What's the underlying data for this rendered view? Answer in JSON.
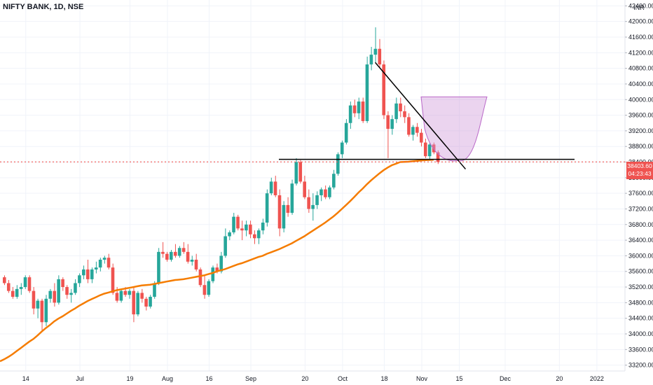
{
  "header": {
    "symbol": "NIFTY BANK, 1D, NSE"
  },
  "axis": {
    "currency": "INR"
  },
  "last_price": {
    "value": "38403.60",
    "countdown": "04:23:43",
    "color": "#ef5350"
  },
  "colors": {
    "up": "#26a69a",
    "down": "#ef5350",
    "ma": "#f57c00",
    "pattern_fill": "#ce93d8",
    "pattern_stroke": "#ba68c8",
    "lines": "#000000",
    "grid": "#f0f3fa"
  },
  "chart_data": {
    "type": "candlestick",
    "title": "NIFTY BANK, 1D, NSE",
    "ylim": [
      33050,
      42550
    ],
    "y_ticks": [
      33200,
      33600,
      34000,
      34400,
      34800,
      35200,
      35600,
      36000,
      36400,
      36800,
      37200,
      37600,
      38000,
      38400,
      38800,
      39200,
      39600,
      40000,
      40400,
      40800,
      41200,
      41600,
      42000,
      42400
    ],
    "x_ticks": [
      "14",
      "Jul",
      "19",
      "Aug",
      "16",
      "Sep",
      "20",
      "Oct",
      "18",
      "Nov",
      "15",
      "Dec",
      "20",
      "2022"
    ],
    "candles": [
      [
        35450,
        35500,
        35250,
        35300
      ],
      [
        35300,
        35380,
        35050,
        35100
      ],
      [
        35100,
        35200,
        34900,
        34950
      ],
      [
        34950,
        35250,
        34900,
        35150
      ],
      [
        35150,
        35300,
        35000,
        35200
      ],
      [
        35200,
        35500,
        35150,
        35450
      ],
      [
        35450,
        35500,
        35050,
        35100
      ],
      [
        35100,
        35200,
        34500,
        34650
      ],
      [
        34650,
        34900,
        34400,
        34850
      ],
      [
        34850,
        34900,
        34050,
        34300
      ],
      [
        34300,
        35000,
        34200,
        34900
      ],
      [
        34900,
        35150,
        34800,
        35100
      ],
      [
        35100,
        35300,
        34700,
        34800
      ],
      [
        34800,
        35500,
        34750,
        35400
      ],
      [
        35400,
        35450,
        35100,
        35200
      ],
      [
        35200,
        35250,
        34900,
        35000
      ],
      [
        35000,
        35150,
        34800,
        35050
      ],
      [
        35050,
        35400,
        35000,
        35300
      ],
      [
        35300,
        35550,
        35200,
        35500
      ],
      [
        35500,
        35750,
        35400,
        35650
      ],
      [
        35650,
        35900,
        35300,
        35400
      ],
      [
        35400,
        35700,
        35300,
        35650
      ],
      [
        35650,
        35850,
        35550,
        35700
      ],
      [
        35700,
        35950,
        35600,
        35900
      ],
      [
        35900,
        36000,
        35800,
        35950
      ],
      [
        35950,
        36050,
        35650,
        35700
      ],
      [
        35700,
        35800,
        35000,
        35050
      ],
      [
        35050,
        35200,
        34800,
        34850
      ],
      [
        34850,
        35150,
        34800,
        35100
      ],
      [
        35100,
        35200,
        34950,
        35000
      ],
      [
        35000,
        35150,
        34900,
        35100
      ],
      [
        35100,
        35200,
        34300,
        34500
      ],
      [
        34500,
        35100,
        34450,
        35050
      ],
      [
        35050,
        35150,
        34800,
        34900
      ],
      [
        34900,
        34950,
        34600,
        34700
      ],
      [
        34700,
        35000,
        34650,
        34950
      ],
      [
        34950,
        35350,
        34900,
        35300
      ],
      [
        35300,
        36200,
        35250,
        36100
      ],
      [
        36100,
        36350,
        35950,
        36050
      ],
      [
        36050,
        36100,
        35850,
        35900
      ],
      [
        35900,
        36150,
        35850,
        36100
      ],
      [
        36100,
        36300,
        35950,
        36000
      ],
      [
        36000,
        36250,
        35950,
        36200
      ],
      [
        36200,
        36350,
        36050,
        36100
      ],
      [
        36100,
        36300,
        35800,
        35850
      ],
      [
        35850,
        36000,
        35750,
        35900
      ],
      [
        35900,
        36050,
        35600,
        35650
      ],
      [
        35650,
        35700,
        35200,
        35250
      ],
      [
        35250,
        35500,
        34900,
        35000
      ],
      [
        35000,
        35400,
        34950,
        35350
      ],
      [
        35350,
        35750,
        35300,
        35700
      ],
      [
        35700,
        35800,
        35550,
        35600
      ],
      [
        35600,
        36100,
        35550,
        36000
      ],
      [
        36000,
        36700,
        35950,
        36500
      ],
      [
        36500,
        36650,
        36400,
        36600
      ],
      [
        36600,
        37100,
        36550,
        37000
      ],
      [
        37000,
        37050,
        36650,
        36700
      ],
      [
        36700,
        36900,
        36400,
        36650
      ],
      [
        36650,
        36900,
        36500,
        36800
      ],
      [
        36800,
        36900,
        36450,
        36550
      ],
      [
        36550,
        36650,
        36300,
        36450
      ],
      [
        36450,
        36700,
        36300,
        36650
      ],
      [
        36650,
        36950,
        36550,
        36850
      ],
      [
        36850,
        37700,
        36750,
        37600
      ],
      [
        37600,
        38000,
        37550,
        37900
      ],
      [
        37900,
        38050,
        37500,
        37550
      ],
      [
        37550,
        37700,
        36500,
        36700
      ],
      [
        36700,
        37400,
        36600,
        37300
      ],
      [
        37300,
        37500,
        37000,
        37100
      ],
      [
        37100,
        37950,
        37050,
        37850
      ],
      [
        37850,
        38500,
        37800,
        38400
      ],
      [
        38400,
        38450,
        37850,
        37900
      ],
      [
        37900,
        38050,
        37450,
        37500
      ],
      [
        37500,
        37700,
        37100,
        37200
      ],
      [
        37200,
        37600,
        36900,
        37300
      ],
      [
        37300,
        37650,
        37200,
        37550
      ],
      [
        37550,
        37750,
        37400,
        37700
      ],
      [
        37700,
        37800,
        37450,
        37500
      ],
      [
        37500,
        37800,
        37450,
        37750
      ],
      [
        37750,
        38200,
        37700,
        38100
      ],
      [
        38100,
        38650,
        38050,
        38600
      ],
      [
        38600,
        38950,
        38500,
        38900
      ],
      [
        38900,
        39500,
        38850,
        39400
      ],
      [
        39400,
        39950,
        39250,
        39850
      ],
      [
        39850,
        40000,
        39550,
        39650
      ],
      [
        39650,
        40050,
        39500,
        39950
      ],
      [
        39950,
        40050,
        39400,
        39450
      ],
      [
        39450,
        41100,
        39400,
        40900
      ],
      [
        40900,
        41350,
        40750,
        41150
      ],
      [
        41150,
        41850,
        40950,
        41300
      ],
      [
        41300,
        41550,
        40800,
        40900
      ],
      [
        40900,
        41000,
        39500,
        39600
      ],
      [
        39600,
        39700,
        38500,
        39250
      ],
      [
        39250,
        39600,
        39100,
        39500
      ],
      [
        39500,
        40050,
        39400,
        39900
      ],
      [
        39900,
        40050,
        39550,
        39700
      ],
      [
        39700,
        39850,
        39400,
        39550
      ],
      [
        39550,
        39650,
        39050,
        39100
      ],
      [
        39100,
        39350,
        38950,
        39300
      ],
      [
        39300,
        39400,
        39050,
        39150
      ],
      [
        39150,
        39250,
        38800,
        38900
      ],
      [
        38900,
        39000,
        38500,
        38550
      ],
      [
        38550,
        38900,
        38450,
        38850
      ],
      [
        38850,
        38900,
        38600,
        38650
      ],
      [
        38650,
        38700,
        38350,
        38403.6
      ]
    ],
    "series": [
      {
        "name": "",
        "type": "moving-average",
        "values": [
          33300,
          33350,
          33410,
          33480,
          33560,
          33640,
          33720,
          33800,
          33870,
          33960,
          34060,
          34150,
          34230,
          34320,
          34390,
          34450,
          34520,
          34590,
          34650,
          34720,
          34780,
          34840,
          34890,
          34940,
          34990,
          35030,
          35060,
          35090,
          35120,
          35140,
          35160,
          35180,
          35200,
          35220,
          35240,
          35250,
          35260,
          35280,
          35300,
          35320,
          35340,
          35360,
          35380,
          35390,
          35400,
          35420,
          35440,
          35460,
          35480,
          35500,
          35530,
          35560,
          35600,
          35630,
          35660,
          35700,
          35740,
          35780,
          35810,
          35850,
          35890,
          35930,
          35970,
          36000,
          36050,
          36090,
          36130,
          36170,
          36220,
          36270,
          36320,
          36380,
          36440,
          36500,
          36570,
          36640,
          36710,
          36780,
          36850,
          36930,
          37010,
          37100,
          37200,
          37300,
          37400,
          37510,
          37620,
          37720,
          37830,
          37930,
          38020,
          38110,
          38190,
          38260,
          38320,
          38360,
          38400,
          38403.6,
          38410,
          38420,
          38430,
          38440,
          38450,
          38455,
          38460
        ]
      }
    ],
    "annotations": {
      "support_level": 38470,
      "last_close": 38403.6
    }
  }
}
